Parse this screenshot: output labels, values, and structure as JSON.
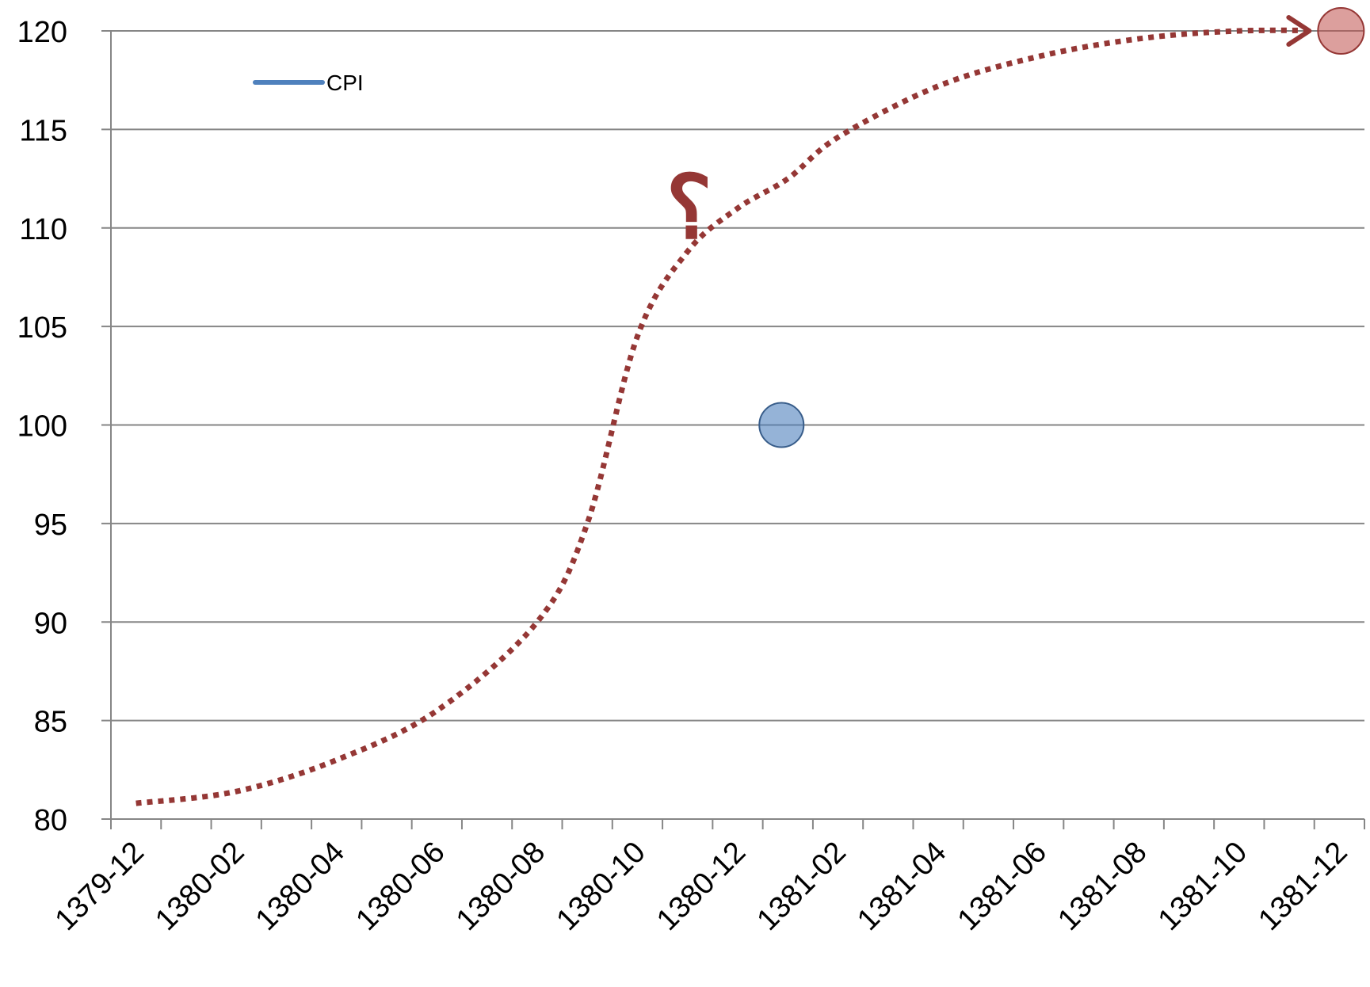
{
  "chart_data": {
    "type": "line",
    "title": "",
    "xlabel": "",
    "ylabel": "",
    "categories": [
      "1379-12",
      "1380-01",
      "1380-02",
      "1380-03",
      "1380-04",
      "1380-05",
      "1380-06",
      "1380-07",
      "1380-08",
      "1380-09",
      "1380-10",
      "1380-11",
      "1380-12",
      "1381-01",
      "1381-02",
      "1381-03",
      "1381-04",
      "1381-05",
      "1381-06",
      "1381-07",
      "1381-08",
      "1381-09",
      "1381-10",
      "1381-11",
      "1381-12"
    ],
    "tick_labels": [
      "1379-12",
      "1380-02",
      "1380-04",
      "1380-06",
      "1380-08",
      "1380-10",
      "1380-12",
      "1381-02",
      "1381-04",
      "1381-06",
      "1381-08",
      "1381-10",
      "1381-12"
    ],
    "ylim": [
      80,
      120
    ],
    "yticks": [
      80,
      85,
      90,
      95,
      100,
      105,
      110,
      115,
      120
    ],
    "grid": true,
    "legend": {
      "position": "top-left",
      "entries": [
        {
          "name": "CPI",
          "color": "#4f81bd"
        }
      ]
    },
    "series": [
      {
        "name": "CPI",
        "color": "#4f81bd",
        "points": [
          {
            "x": "1381-01",
            "y": 100
          }
        ]
      }
    ],
    "annotations": {
      "trend_curve": {
        "color": "#953735",
        "style": "dotted-arrow",
        "points": [
          {
            "x": "1379-12",
            "y": 80.8
          },
          {
            "x": "1380-02",
            "y": 81.4
          },
          {
            "x": "1380-04",
            "y": 83.0
          },
          {
            "x": "1380-06",
            "y": 85.5
          },
          {
            "x": "1380-08",
            "y": 90.0
          },
          {
            "x": "1380-09",
            "y": 95.0
          },
          {
            "x": "1380-10",
            "y": 104.5
          },
          {
            "x": "1380-11",
            "y": 108.8
          },
          {
            "x": "1380-12",
            "y": 111.0
          },
          {
            "x": "1381-01",
            "y": 112.5
          },
          {
            "x": "1381-02",
            "y": 114.6
          },
          {
            "x": "1381-04",
            "y": 117.2
          },
          {
            "x": "1381-06",
            "y": 118.7
          },
          {
            "x": "1381-08",
            "y": 119.6
          },
          {
            "x": "1381-10",
            "y": 120.0
          },
          {
            "x": "1381-12",
            "y": 120.0
          }
        ]
      },
      "target_point": {
        "x": "1381-12",
        "y": 120,
        "color": "#c0504d"
      },
      "question_mark": {
        "text": "؟",
        "x": "1380-11",
        "y": 110,
        "color": "#953735"
      }
    }
  }
}
